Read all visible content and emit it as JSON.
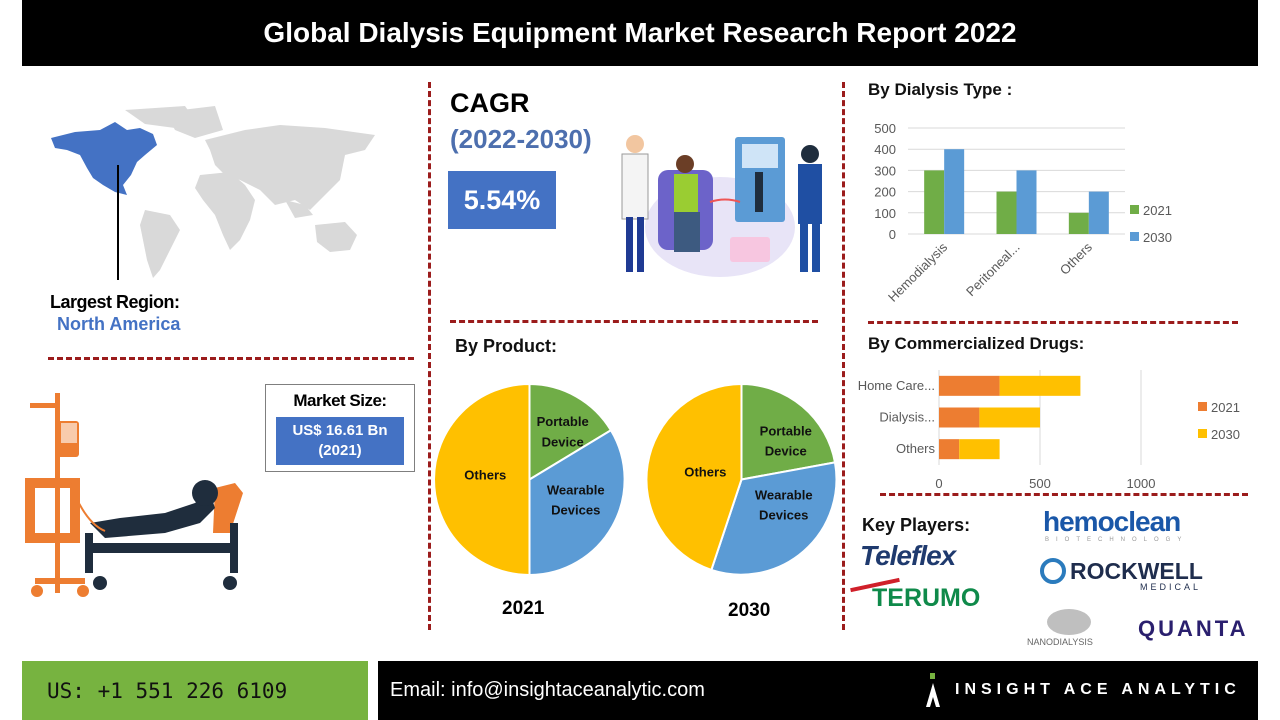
{
  "header": {
    "title": "Global Dialysis Equipment Market Research Report 2022"
  },
  "region": {
    "label": "Largest Region:",
    "value": "North America"
  },
  "cagr": {
    "label": "CAGR",
    "period": "(2022-2030)",
    "value": "5.54%"
  },
  "market_size": {
    "label": "Market Size:",
    "value_line1": "US$ 16.61 Bn",
    "value_line2": "(2021)"
  },
  "by_product": {
    "title": "By Product:",
    "year_2021": "2021",
    "year_2030": "2030",
    "labels": {
      "portable": [
        "Portable",
        "Device"
      ],
      "wearable": [
        "Wearable",
        "Devices"
      ],
      "others": "Others"
    }
  },
  "by_dialysis_type": {
    "title": "By Dialysis Type :"
  },
  "by_drugs": {
    "title": "By Commercialized Drugs:"
  },
  "key_players": {
    "title": "Key Players:",
    "logos": [
      "Teleflex",
      "TERUMO",
      "hemoclean",
      "BIOTECHNOLOGY",
      "ROCKWELL",
      "MEDICAL",
      "NANODIALYSIS",
      "QUANTA"
    ]
  },
  "footer": {
    "phone": "US: +1 551 226 6109",
    "email": "Email: info@insightaceanalytic.com",
    "brand": "INSIGHT ACE ANALYTIC"
  },
  "colors": {
    "green": "#70ad47",
    "blue": "#5b9bd5",
    "orange": "#ed7d31",
    "yellow": "#ffc000",
    "accent_blue": "#4472c4",
    "divider": "#9b1c1c"
  },
  "chart_data": [
    {
      "type": "bar",
      "title": "By Dialysis Type :",
      "categories": [
        "Hemodialysis",
        "Peritoneal...",
        "Others"
      ],
      "series": [
        {
          "name": "2021",
          "values": [
            300,
            200,
            100
          ],
          "color": "#70ad47"
        },
        {
          "name": "2030",
          "values": [
            400,
            300,
            200
          ],
          "color": "#5b9bd5"
        }
      ],
      "ylim": [
        0,
        500
      ],
      "yticks": [
        0,
        100,
        200,
        300,
        400,
        500
      ],
      "grid": true,
      "legend_position": "right"
    },
    {
      "type": "bar",
      "orientation": "horizontal",
      "stacked": true,
      "title": "By Commercialized Drugs:",
      "categories": [
        "Home Care...",
        "Dialysis...",
        "Others"
      ],
      "series": [
        {
          "name": "2021",
          "values": [
            300,
            200,
            100
          ],
          "color": "#ed7d31"
        },
        {
          "name": "2030",
          "values": [
            400,
            300,
            200
          ],
          "color": "#ffc000"
        }
      ],
      "xlim": [
        0,
        1000
      ],
      "xticks": [
        0,
        500,
        1000
      ],
      "grid": true,
      "legend_position": "right"
    },
    {
      "type": "pie",
      "title": "By Product: 2021",
      "categories": [
        "Portable Device",
        "Wearable Devices",
        "Others"
      ],
      "values": [
        17,
        33,
        50
      ],
      "colors": [
        "#70ad47",
        "#5b9bd5",
        "#ffc000"
      ]
    },
    {
      "type": "pie",
      "title": "By Product: 2030",
      "categories": [
        "Portable Device",
        "Wearable Devices",
        "Others"
      ],
      "values": [
        21,
        35,
        44
      ],
      "colors": [
        "#70ad47",
        "#5b9bd5",
        "#ffc000"
      ]
    }
  ]
}
